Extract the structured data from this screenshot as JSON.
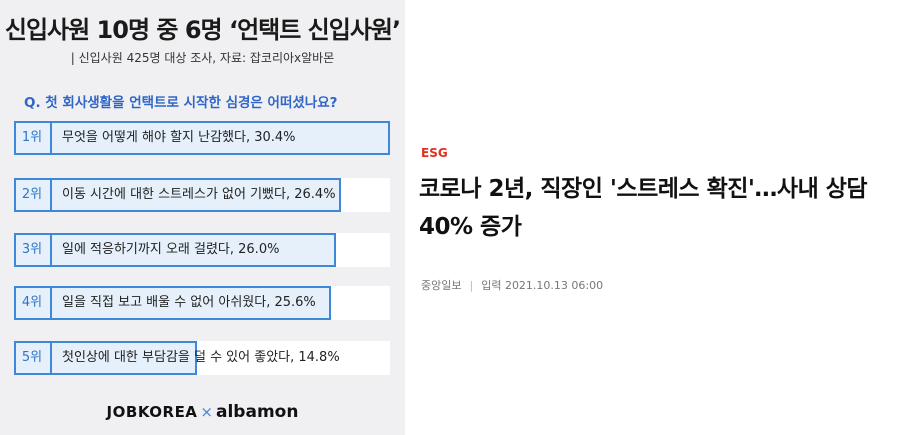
{
  "infographic": {
    "title": "신입사원 10명 중 6명 ‘언택트 신입사원’",
    "source": "| 신입사원 425명 대상 조사, 자료: 잡코리아x알바몬",
    "question": "Q. 첫 회사생활을 언택트로 시작한 심경은 어떠셨나요?",
    "ranks": [
      {
        "rank": "1위",
        "text": "무엇을 어떻게 해야 할지 난감했다, 30.4%",
        "percent": 30.4
      },
      {
        "rank": "2위",
        "text": "이동 시간에 대한 스트레스가 없어 기뻤다, 26.4%",
        "percent": 26.4
      },
      {
        "rank": "3위",
        "text": "일에 적응하기까지 오래 걸렸다, 26.0%",
        "percent": 26.0
      },
      {
        "rank": "4위",
        "text": "일을 직접 보고 배울 수 없어 아쉬웠다, 25.6%",
        "percent": 25.6
      },
      {
        "rank": "5위",
        "text": "첫인상에 대한 부담감을 덜 수 있어 좋았다, 14.8%",
        "percent": 14.8
      }
    ],
    "logo_left": "JOBKOREA",
    "logo_x": "×",
    "logo_right": "albamon",
    "colors": {
      "accent": "#3f87d8",
      "fill": "#e6f0fb",
      "question": "#2f66c8"
    }
  },
  "article": {
    "category": "ESG",
    "headline": "코로나 2년, 직장인 '스트레스 확진'…사내 상담 40% 증가",
    "publisher": "중앙일보",
    "separator": "|",
    "date": "입력 2021.10.13 06:00",
    "colors": {
      "category": "#e0301e"
    }
  }
}
